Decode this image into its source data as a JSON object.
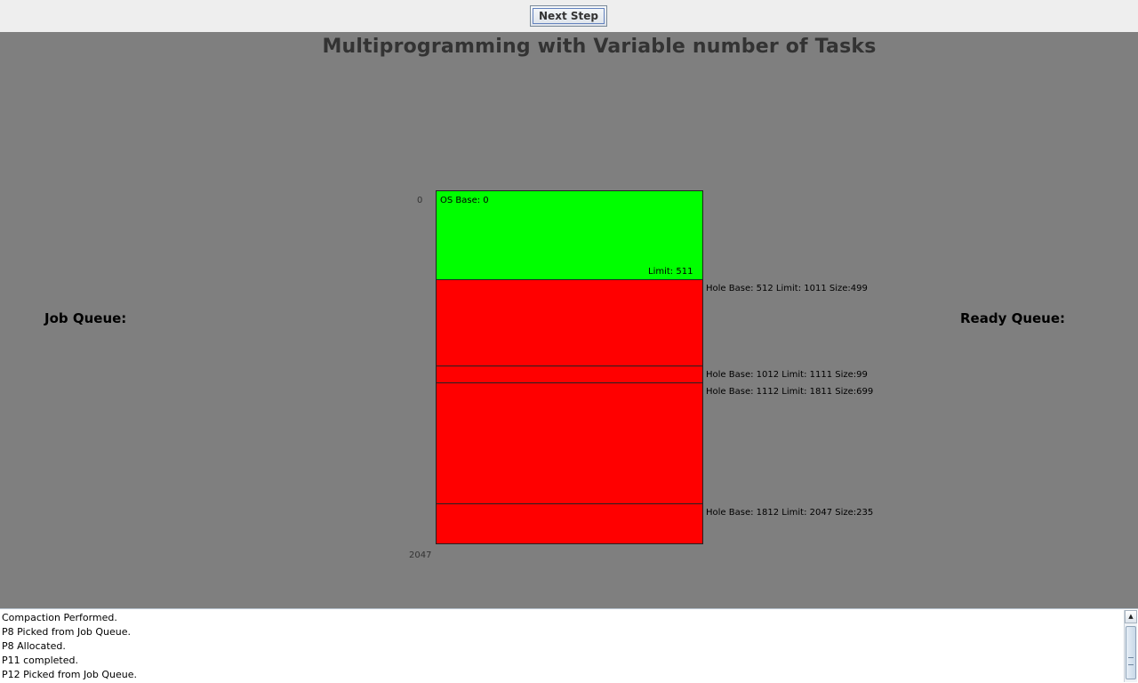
{
  "toolbar": {
    "next_step_label": "Next Step"
  },
  "canvas": {
    "title": "Multiprogramming with Variable number of Tasks",
    "job_queue_label": "Job Queue:",
    "ready_queue_label": "Ready Queue:"
  },
  "memory": {
    "start_address": "0",
    "end_address": "2047",
    "os": {
      "base_label": "OS Base: 0",
      "limit_label": "Limit: 511",
      "color": "#00ff00"
    },
    "hole_color": "#ff0000",
    "holes": [
      {
        "label": "Hole Base: 512 Limit: 1011 Size:499"
      },
      {
        "label": "Hole Base: 1012 Limit: 1111 Size:99"
      },
      {
        "label": "Hole Base: 1112 Limit: 1811 Size:699"
      },
      {
        "label": "Hole Base: 1812 Limit: 2047 Size:235"
      }
    ]
  },
  "log": {
    "lines": [
      "Compaction Performed.",
      "P8 Picked from Job Queue.",
      "P8 Allocated.",
      "P11 completed.",
      "P12 Picked from Job Queue."
    ]
  }
}
